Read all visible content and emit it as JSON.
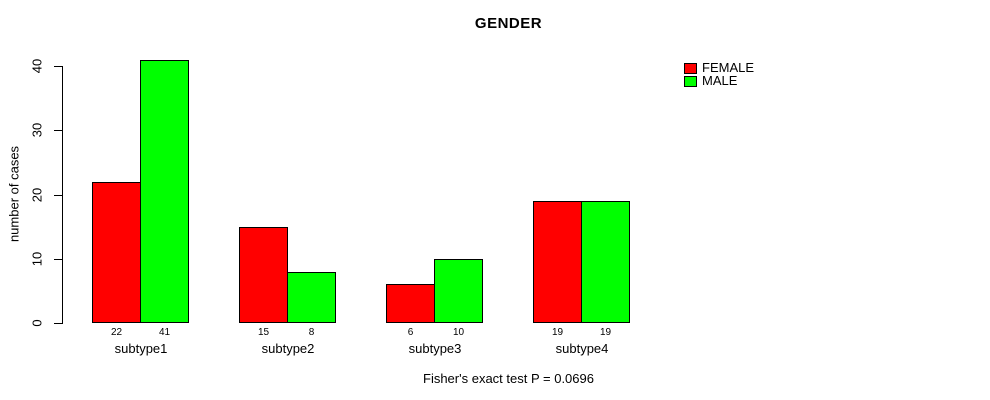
{
  "title": "GENDER",
  "footer": "Fisher's exact test P = 0.0696",
  "y_axis": {
    "label": "number of cases",
    "tick_labels": [
      "0",
      "10",
      "20",
      "30",
      "40"
    ]
  },
  "legend": {
    "items": [
      {
        "label": "FEMALE",
        "color": "#FF0000"
      },
      {
        "label": "MALE",
        "color": "#00FF00"
      }
    ]
  },
  "chart_data": {
    "type": "bar",
    "title": "GENDER",
    "categories": [
      "subtype1",
      "subtype2",
      "subtype3",
      "subtype4"
    ],
    "series": [
      {
        "name": "FEMALE",
        "color": "#FF0000",
        "values": [
          22,
          15,
          6,
          19
        ]
      },
      {
        "name": "MALE",
        "color": "#00FF00",
        "values": [
          41,
          8,
          10,
          19
        ]
      }
    ],
    "bar_value_labels": [
      [
        "22",
        "41"
      ],
      [
        "15",
        "8"
      ],
      [
        "6",
        "10"
      ],
      [
        "19",
        "19"
      ]
    ],
    "xlabel": "",
    "ylabel": "number of cases",
    "ylim": [
      0,
      40
    ],
    "yticks": [
      0,
      10,
      20,
      30,
      40
    ],
    "grid": false,
    "legend_position": "top-right",
    "annotation": "Fisher's exact test P = 0.0696"
  }
}
